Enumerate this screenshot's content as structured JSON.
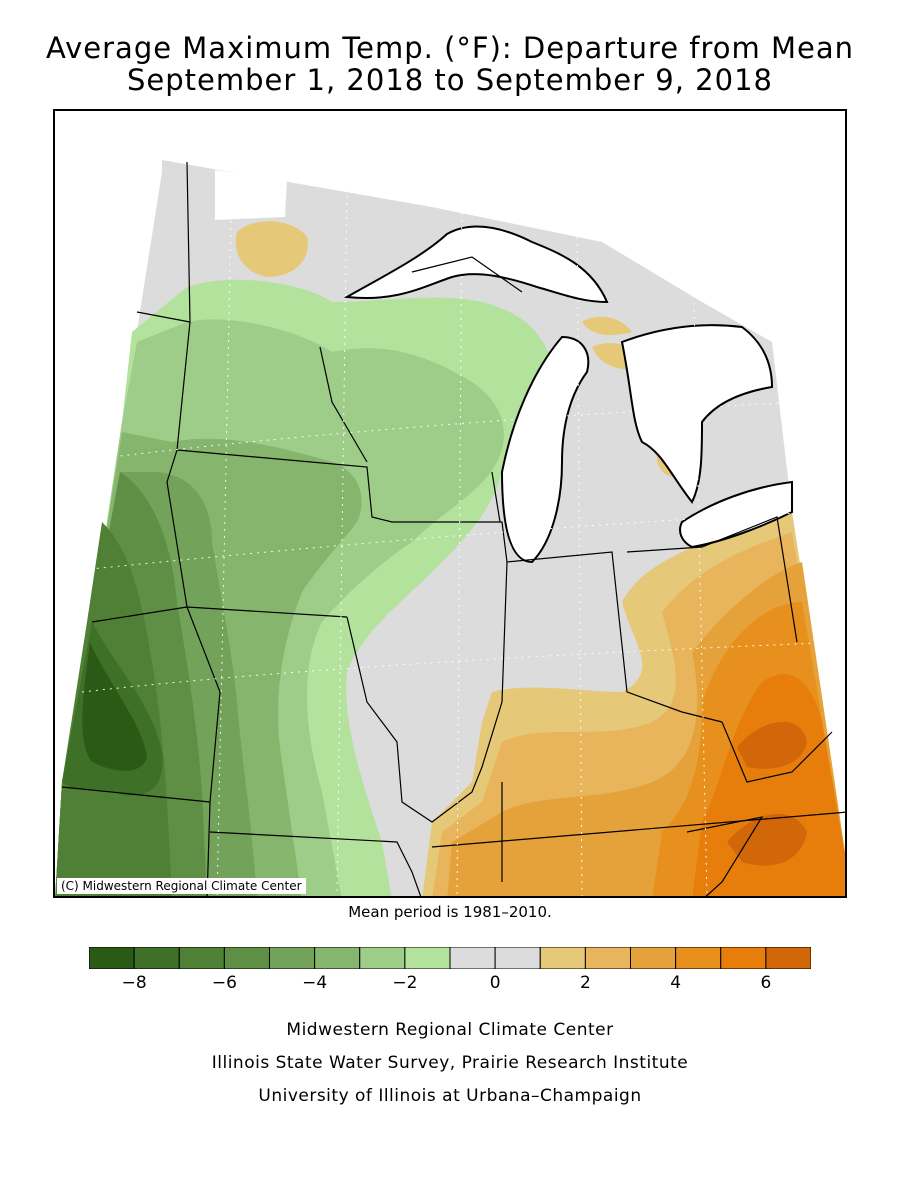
{
  "title_line1": "Average Maximum Temp. (°F): Departure from Mean",
  "title_line2": "September 1, 2018 to September 9, 2018",
  "copyright": "(C) Midwestern Regional Climate Center",
  "mean_note": "Mean period is 1981–2010.",
  "legend": {
    "bins": [
      {
        "from": -9,
        "to": -8,
        "color": "#2b5a17"
      },
      {
        "from": -8,
        "to": -7,
        "color": "#3e7027"
      },
      {
        "from": -7,
        "to": -6,
        "color": "#4f8035"
      },
      {
        "from": -6,
        "to": -5,
        "color": "#5f8f45"
      },
      {
        "from": -5,
        "to": -4,
        "color": "#73a25a"
      },
      {
        "from": -4,
        "to": -3,
        "color": "#86b56e"
      },
      {
        "from": -3,
        "to": -2,
        "color": "#9dcd88"
      },
      {
        "from": -2,
        "to": -1,
        "color": "#b3e29d"
      },
      {
        "from": -1,
        "to": 0,
        "color": "#dcdcdc"
      },
      {
        "from": 0,
        "to": 1,
        "color": "#dcdcdc"
      },
      {
        "from": 1,
        "to": 2,
        "color": "#e6c879"
      },
      {
        "from": 2,
        "to": 3,
        "color": "#e8b55d"
      },
      {
        "from": 3,
        "to": 4,
        "color": "#e6a23a"
      },
      {
        "from": 4,
        "to": 5,
        "color": "#e8901e"
      },
      {
        "from": 5,
        "to": 6,
        "color": "#e77e0c"
      },
      {
        "from": 6,
        "to": 7,
        "color": "#d16709"
      }
    ],
    "tick_labels": [
      "−8",
      "−6",
      "−4",
      "−2",
      "0",
      "2",
      "4",
      "6"
    ]
  },
  "credits": [
    "Midwestern Regional Climate Center",
    "Illinois State Water Survey, Prairie Research Institute",
    "University of Illinois at Urbana–Champaign"
  ]
}
